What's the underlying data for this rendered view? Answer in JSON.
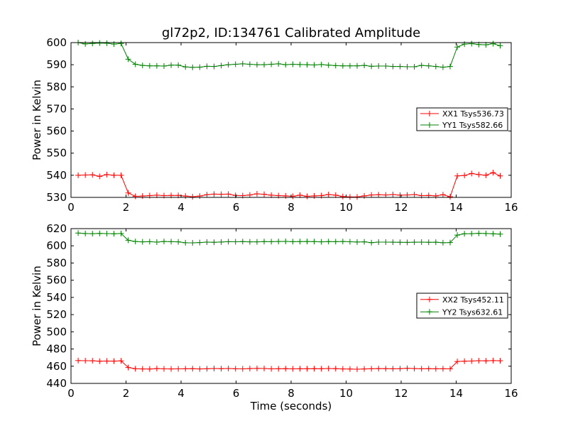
{
  "chart_data": [
    {
      "type": "line",
      "title": "gl72p2, ID:134761 Calibrated Amplitude",
      "xlabel": "",
      "ylabel": "Power in Kelvin",
      "xlim": [
        0,
        16
      ],
      "ylim": [
        530,
        600
      ],
      "xticks": [
        0,
        2,
        4,
        6,
        8,
        10,
        12,
        14,
        16
      ],
      "yticks": [
        530,
        540,
        550,
        560,
        570,
        580,
        590,
        600
      ],
      "legend_position": "center-right",
      "x": [
        0.26,
        0.52,
        0.78,
        1.04,
        1.3,
        1.56,
        1.82,
        2.08,
        2.34,
        2.6,
        2.86,
        3.12,
        3.38,
        3.64,
        3.9,
        4.16,
        4.42,
        4.68,
        4.94,
        5.2,
        5.46,
        5.72,
        5.98,
        6.24,
        6.5,
        6.76,
        7.02,
        7.28,
        7.54,
        7.8,
        8.06,
        8.32,
        8.58,
        8.84,
        9.1,
        9.36,
        9.62,
        9.88,
        10.14,
        10.4,
        10.66,
        10.92,
        11.18,
        11.44,
        11.7,
        11.96,
        12.22,
        12.48,
        12.74,
        13.0,
        13.26,
        13.52,
        13.78,
        14.04,
        14.3,
        14.56,
        14.82,
        15.08,
        15.34,
        15.6
      ],
      "series": [
        {
          "name": "XX1 Tsys536.73",
          "color": "#ff0000",
          "values": [
            540.0,
            540.1,
            540.2,
            539.5,
            540.3,
            540.0,
            540.0,
            532.0,
            530.5,
            530.6,
            530.8,
            531.0,
            530.8,
            530.9,
            530.9,
            530.6,
            530.3,
            530.6,
            531.2,
            531.5,
            531.4,
            531.5,
            530.9,
            530.8,
            531.1,
            531.6,
            531.4,
            531.0,
            530.8,
            530.7,
            530.5,
            531.0,
            530.5,
            530.7,
            530.8,
            531.3,
            531.0,
            530.4,
            530.2,
            530.2,
            530.7,
            531.1,
            531.2,
            531.1,
            531.3,
            531.0,
            531.1,
            531.3,
            530.8,
            530.9,
            530.7,
            531.2,
            530.3,
            539.7,
            539.9,
            540.8,
            540.3,
            540.0,
            541.2,
            539.7
          ]
        },
        {
          "name": "YY1 Tsys582.66",
          "color": "#008000",
          "values": [
            600.0,
            599.4,
            599.6,
            599.8,
            599.7,
            599.3,
            599.6,
            592.5,
            590.2,
            589.7,
            589.5,
            589.5,
            589.4,
            589.8,
            589.8,
            589.0,
            588.8,
            588.9,
            589.3,
            589.2,
            589.6,
            590.0,
            590.2,
            590.4,
            590.2,
            590.0,
            590.0,
            590.2,
            590.4,
            590.0,
            590.2,
            590.1,
            590.0,
            589.9,
            590.1,
            589.8,
            589.6,
            589.5,
            589.5,
            589.5,
            589.7,
            589.3,
            589.4,
            589.4,
            589.2,
            589.2,
            589.1,
            589.1,
            589.7,
            589.5,
            589.2,
            588.9,
            589.2,
            598.0,
            599.3,
            599.5,
            599.1,
            599.0,
            599.5,
            598.6
          ]
        }
      ]
    },
    {
      "type": "line",
      "title": "",
      "xlabel": "Time (seconds)",
      "ylabel": "Power in Kelvin",
      "xlim": [
        0,
        16
      ],
      "ylim": [
        440,
        620
      ],
      "xticks": [
        0,
        2,
        4,
        6,
        8,
        10,
        12,
        14,
        16
      ],
      "yticks": [
        440,
        460,
        480,
        500,
        520,
        540,
        560,
        580,
        600,
        620
      ],
      "legend_position": "center-right",
      "x": [
        0.26,
        0.52,
        0.78,
        1.04,
        1.3,
        1.56,
        1.82,
        2.08,
        2.34,
        2.6,
        2.86,
        3.12,
        3.38,
        3.64,
        3.9,
        4.16,
        4.42,
        4.68,
        4.94,
        5.2,
        5.46,
        5.72,
        5.98,
        6.24,
        6.5,
        6.76,
        7.02,
        7.28,
        7.54,
        7.8,
        8.06,
        8.32,
        8.58,
        8.84,
        9.1,
        9.36,
        9.62,
        9.88,
        10.14,
        10.4,
        10.66,
        10.92,
        11.18,
        11.44,
        11.7,
        11.96,
        12.22,
        12.48,
        12.74,
        13.0,
        13.26,
        13.52,
        13.78,
        14.04,
        14.3,
        14.56,
        14.82,
        15.08,
        15.34,
        15.6
      ],
      "series": [
        {
          "name": "XX2 Tsys452.11",
          "color": "#ff0000",
          "values": [
            466.5,
            466.4,
            466.3,
            465.8,
            466.0,
            465.9,
            466.2,
            458.5,
            457.0,
            456.8,
            456.7,
            457.2,
            456.9,
            456.8,
            456.9,
            457.0,
            457.1,
            456.8,
            457.0,
            457.3,
            457.1,
            457.3,
            457.0,
            456.9,
            457.2,
            457.4,
            457.3,
            456.9,
            457.0,
            457.1,
            456.9,
            457.0,
            457.0,
            457.1,
            457.0,
            457.3,
            457.1,
            456.8,
            456.7,
            456.5,
            456.8,
            457.0,
            457.2,
            457.1,
            457.0,
            457.1,
            457.5,
            457.2,
            457.0,
            457.1,
            457.0,
            457.0,
            456.9,
            465.5,
            465.8,
            466.0,
            466.4,
            466.2,
            466.5,
            466.3
          ]
        },
        {
          "name": "YY2 Tsys632.61",
          "color": "#008000",
          "values": [
            614.8,
            614.3,
            614.1,
            614.4,
            614.2,
            614.0,
            614.3,
            606.5,
            605.0,
            604.6,
            604.8,
            604.3,
            605.0,
            604.8,
            604.6,
            603.6,
            603.5,
            603.8,
            604.3,
            604.1,
            604.4,
            604.8,
            604.7,
            604.9,
            604.6,
            604.6,
            604.9,
            604.8,
            605.0,
            605.1,
            604.8,
            604.9,
            605.0,
            604.9,
            604.6,
            604.9,
            604.8,
            605.0,
            604.7,
            604.4,
            604.6,
            603.7,
            604.3,
            604.3,
            604.2,
            604.1,
            604.0,
            604.2,
            604.3,
            604.1,
            604.2,
            603.6,
            603.8,
            612.5,
            614.0,
            614.1,
            614.5,
            614.3,
            614.0,
            613.6
          ]
        }
      ]
    }
  ]
}
